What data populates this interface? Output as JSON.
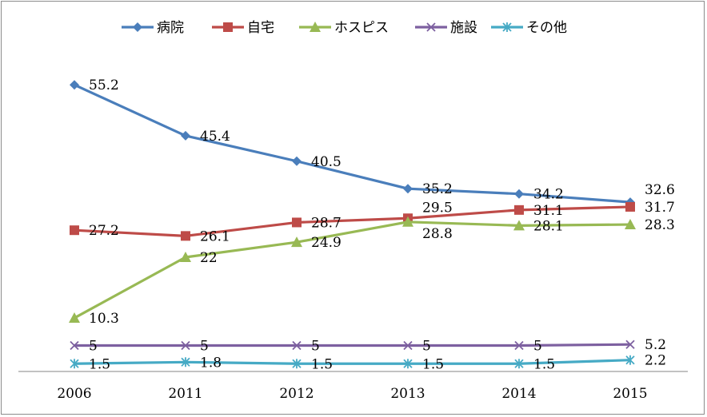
{
  "chart_data": {
    "type": "line",
    "title": "",
    "xlabel": "",
    "ylabel": "",
    "categories": [
      "2006",
      "2011",
      "2012",
      "2013",
      "2014",
      "2015"
    ],
    "ylim": [
      0,
      60
    ],
    "grid": false,
    "legend_position": "top",
    "series": [
      {
        "name": "病院",
        "values": [
          55.2,
          45.4,
          40.5,
          35.2,
          34.2,
          32.6
        ],
        "color": "#4a7ebb",
        "marker": "diamond"
      },
      {
        "name": "自宅",
        "values": [
          27.2,
          26.1,
          28.7,
          29.5,
          31.1,
          31.7
        ],
        "color": "#be4b48",
        "marker": "square"
      },
      {
        "name": "ホスピス",
        "values": [
          10.3,
          22,
          24.9,
          28.8,
          28.1,
          28.3
        ],
        "color": "#98b954",
        "marker": "triangle"
      },
      {
        "name": "施設",
        "values": [
          5,
          5,
          5,
          5,
          5,
          5.2
        ],
        "color": "#7d60a0",
        "marker": "x"
      },
      {
        "name": "その他",
        "values": [
          1.5,
          1.8,
          1.5,
          1.5,
          1.5,
          2.2
        ],
        "color": "#46aac5",
        "marker": "asterisk"
      }
    ]
  }
}
